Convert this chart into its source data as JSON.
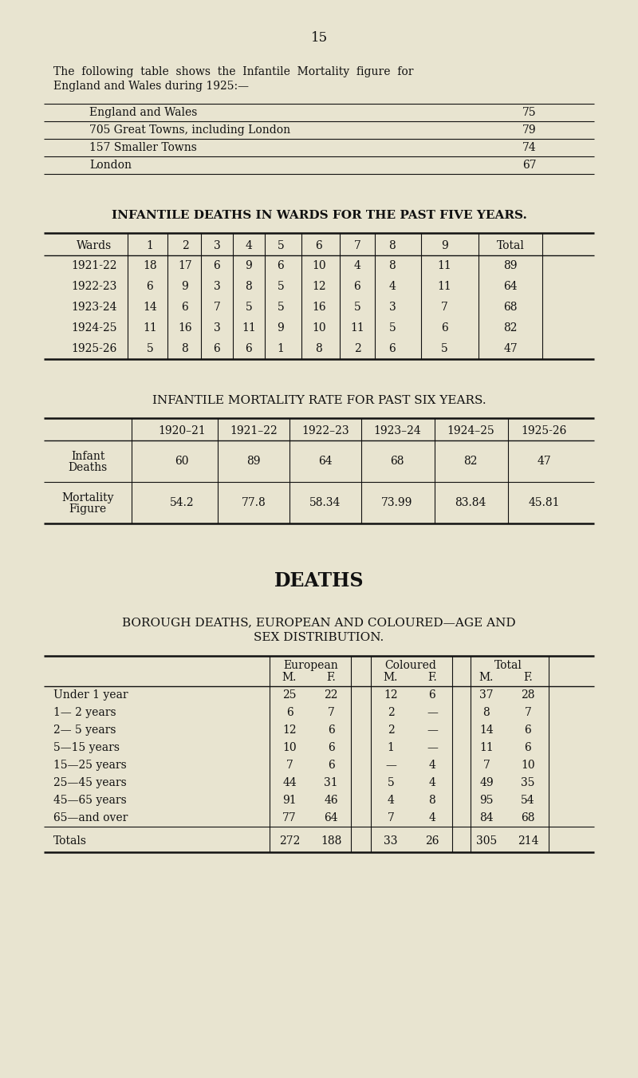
{
  "bg_color": "#e8e4d0",
  "text_color": "#1a1a1a",
  "page_number": "15",
  "intro_line1": "The  following  table  shows  the  Infantile  Mortality  figure  for",
  "intro_line2": "England and Wales during 1925:—",
  "mortality_rows": [
    [
      "England and Wales",
      "75"
    ],
    [
      "705 Great Towns, including London",
      "79"
    ],
    [
      "157 Smaller Towns",
      "74"
    ],
    [
      "London",
      "67"
    ]
  ],
  "ward_title": "INFANTILE DEATHS IN WARDS FOR THE PAST FIVE YEARS.",
  "ward_headers": [
    "Wards",
    "1",
    "2",
    "3",
    "4",
    "5",
    "6",
    "7",
    "8",
    "9",
    "Total"
  ],
  "ward_data": [
    [
      "1921-22",
      "18",
      "17",
      "6",
      "9",
      "6",
      "10",
      "4",
      "8",
      "11",
      "89"
    ],
    [
      "1922-23",
      "6",
      "9",
      "3",
      "8",
      "5",
      "12",
      "6",
      "4",
      "11",
      "64"
    ],
    [
      "1923-24",
      "14",
      "6",
      "7",
      "5",
      "5",
      "16",
      "5",
      "3",
      "7",
      "68"
    ],
    [
      "1924-25",
      "11",
      "16",
      "3",
      "11",
      "9",
      "10",
      "11",
      "5",
      "6",
      "82"
    ],
    [
      "1925-26",
      "5",
      "8",
      "6",
      "6",
      "1",
      "8",
      "2",
      "6",
      "5",
      "47"
    ]
  ],
  "imr_title": "INFANTILE MORTALITY RATE FOR PAST SIX YEARS.",
  "imr_headers": [
    "",
    "1920–21",
    "1921–22",
    "1922–23",
    "1923–24",
    "1924–25",
    "1925-26"
  ],
  "imr_row1_label": "Infant\nDeaths",
  "imr_row1_values": [
    "60",
    "89",
    "64",
    "68",
    "82",
    "47"
  ],
  "imr_row2_label": "Mortality\nFigure",
  "imr_row2_values": [
    "54.2",
    "77.8",
    "58.34",
    "73.99",
    "83.84",
    "45.81"
  ],
  "deaths_title": "DEATHS",
  "borough_title_line1": "BOROUGH DEATHS, EUROPEAN AND COLOURED—AGE AND",
  "borough_title_line2": "SEX DISTRIBUTION.",
  "borough_grp_headers": [
    [
      "European",
      390
    ],
    [
      "Coloured",
      515
    ],
    [
      "Total",
      637
    ]
  ],
  "borough_sub_headers": [
    [
      "M.",
      363
    ],
    [
      "F.",
      415
    ],
    [
      "M.",
      490
    ],
    [
      "F.",
      542
    ],
    [
      "M.",
      610
    ],
    [
      "F.",
      662
    ]
  ],
  "borough_rows": [
    [
      "Under 1 year",
      "25",
      "22",
      "12",
      "6",
      "37",
      "28"
    ],
    [
      "1— 2 years",
      "6",
      "7",
      "2",
      "—",
      "8",
      "7"
    ],
    [
      "2— 5 years",
      "12",
      "6",
      "2",
      "—",
      "14",
      "6"
    ],
    [
      "5—15 years",
      "10",
      "6",
      "1",
      "—",
      "11",
      "6"
    ],
    [
      "15—25 years",
      "7",
      "6",
      "—",
      "4",
      "7",
      "10"
    ],
    [
      "25—45 years",
      "44",
      "31",
      "5",
      "4",
      "49",
      "35"
    ],
    [
      "45—65 years",
      "91",
      "46",
      "4",
      "8",
      "95",
      "54"
    ],
    [
      "65—and over",
      "77",
      "64",
      "7",
      "4",
      "84",
      "68"
    ]
  ],
  "borough_totals": [
    "Totals",
    "272",
    "188",
    "33",
    "26",
    "305",
    "214"
  ],
  "ward_col_centers": [
    118,
    188,
    232,
    272,
    312,
    352,
    400,
    448,
    492,
    557,
    640,
    710
  ],
  "ward_vlines": [
    160,
    210,
    252,
    292,
    332,
    378,
    426,
    470,
    528,
    600,
    680
  ],
  "imr_col_centers": [
    110,
    228,
    318,
    408,
    498,
    590,
    682
  ],
  "imr_vlines": [
    165,
    273,
    363,
    453,
    545,
    637
  ]
}
